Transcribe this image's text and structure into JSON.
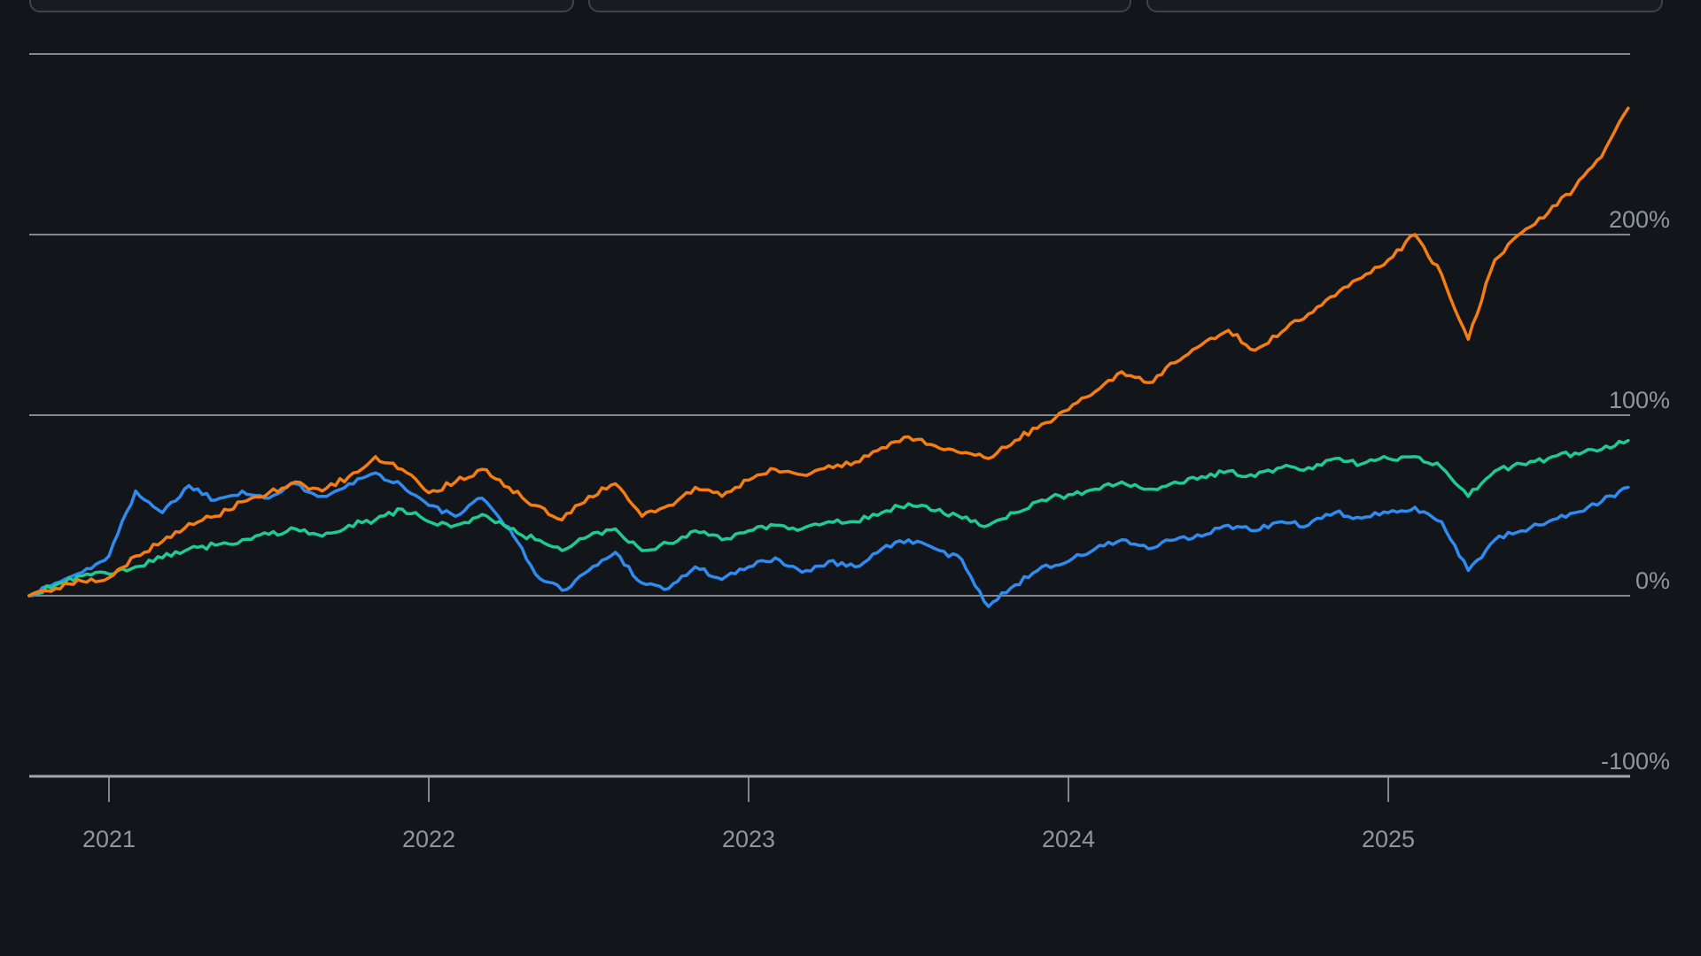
{
  "page": {
    "background": "#12151a",
    "text_color": "#8f969c",
    "gridline_color": "#9aa1a7",
    "card_background": "#181c22",
    "card_border": "#3e434a"
  },
  "top_cards": {
    "count": 3,
    "note_visible_text": ""
  },
  "chart_data": {
    "type": "line",
    "title": "",
    "xlabel": "",
    "ylabel": "",
    "unit": "percent-return",
    "grid": "horizontal",
    "legend": "none",
    "x_unit": "decimal-year",
    "x": [
      2020.75,
      2020.8333,
      2020.9167,
      2021.0,
      2021.0833,
      2021.1667,
      2021.25,
      2021.3333,
      2021.4167,
      2021.5,
      2021.5833,
      2021.6667,
      2021.75,
      2021.8333,
      2021.9167,
      2022.0,
      2022.0833,
      2022.1667,
      2022.25,
      2022.3333,
      2022.4167,
      2022.5,
      2022.5833,
      2022.6667,
      2022.75,
      2022.8333,
      2022.9167,
      2023.0,
      2023.0833,
      2023.1667,
      2023.25,
      2023.3333,
      2023.4167,
      2023.5,
      2023.5833,
      2023.6667,
      2023.75,
      2023.8333,
      2023.9167,
      2024.0,
      2024.0833,
      2024.1667,
      2024.25,
      2024.3333,
      2024.4167,
      2024.5,
      2024.5833,
      2024.6667,
      2024.75,
      2024.8333,
      2024.9167,
      2025.0,
      2025.0833,
      2025.1667,
      2025.25,
      2025.3333,
      2025.4167,
      2025.5,
      2025.5833,
      2025.6667,
      2025.75
    ],
    "series": [
      {
        "name": "series-blue",
        "color": "#2f8bef",
        "values": [
          0,
          7,
          13,
          22,
          58,
          46,
          61,
          53,
          58,
          54,
          62,
          55,
          62,
          68,
          61,
          50,
          44,
          54,
          38,
          12,
          3,
          14,
          24,
          7,
          4,
          16,
          9,
          16,
          21,
          13,
          19,
          16,
          26,
          31,
          26,
          20,
          -6,
          6,
          16,
          19,
          26,
          31,
          26,
          31,
          33,
          39,
          36,
          41,
          39,
          46,
          43,
          46,
          49,
          41,
          14,
          31,
          36,
          41,
          46,
          52,
          60
        ]
      },
      {
        "name": "series-green",
        "color": "#1fcb92",
        "values": [
          0,
          6,
          11,
          12,
          16,
          21,
          26,
          28,
          31,
          34,
          37,
          33,
          39,
          42,
          48,
          41,
          39,
          45,
          37,
          31,
          25,
          33,
          37,
          25,
          29,
          36,
          31,
          36,
          39,
          37,
          41,
          41,
          46,
          51,
          47,
          43,
          39,
          46,
          53,
          56,
          59,
          63,
          59,
          63,
          66,
          69,
          66,
          71,
          71,
          76,
          73,
          76,
          77,
          71,
          55,
          69,
          73,
          76,
          79,
          81,
          86
        ]
      },
      {
        "name": "series-orange",
        "color": "#f57d11",
        "values": [
          0,
          4,
          8,
          10,
          22,
          30,
          40,
          44,
          52,
          57,
          63,
          58,
          66,
          77,
          70,
          57,
          63,
          70,
          60,
          50,
          42,
          55,
          62,
          44,
          50,
          60,
          55,
          64,
          70,
          67,
          72,
          74,
          82,
          88,
          83,
          79,
          76,
          86,
          95,
          103,
          113,
          124,
          118,
          129,
          139,
          147,
          136,
          146,
          156,
          166,
          176,
          186,
          200,
          178,
          142,
          186,
          201,
          212,
          226,
          243,
          270
        ]
      }
    ],
    "y_axis": {
      "range": [
        -100,
        300
      ],
      "gridline_values": [
        300,
        200,
        100,
        0,
        -100
      ],
      "ticks": [
        {
          "value": 200,
          "label": "200%"
        },
        {
          "value": 100,
          "label": "100%"
        },
        {
          "value": 0,
          "label": "0%"
        },
        {
          "value": -100,
          "label": "-100%"
        }
      ],
      "position": "right"
    },
    "x_axis": {
      "ticks": [
        {
          "value": 2021,
          "label": "2021"
        },
        {
          "value": 2022,
          "label": "2022"
        },
        {
          "value": 2023,
          "label": "2023"
        },
        {
          "value": 2024,
          "label": "2024"
        },
        {
          "value": 2025,
          "label": "2025"
        }
      ]
    }
  }
}
